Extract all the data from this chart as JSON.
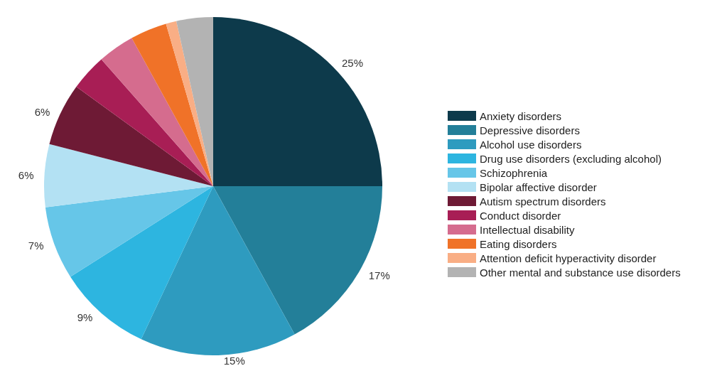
{
  "chart_data": {
    "type": "pie",
    "categories": [
      "Anxiety disorders",
      "Depressive disorders",
      "Alcohol use disorders",
      "Drug use disorders (excluding alcohol)",
      "Schizophrenia",
      "Bipolar affective disorder",
      "Autism spectrum disorders",
      "Conduct disorder",
      "Intellectual disability",
      "Eating disorders",
      "Attention deficit hyperactivity disorder",
      "Other mental and substance use disorders"
    ],
    "values": [
      25,
      17,
      15,
      9,
      7,
      6,
      6,
      3.5,
      3.5,
      3.5,
      1,
      3.5
    ],
    "value_labels": [
      "25%",
      "17%",
      "15%",
      "9%",
      "7%",
      "6%",
      "6%",
      null,
      null,
      null,
      null,
      null
    ],
    "colors": [
      "#0d3a4b",
      "#237f99",
      "#2e9bbf",
      "#2db5e0",
      "#66c6e8",
      "#b3e1f3",
      "#6e1a35",
      "#a81e55",
      "#d56c8e",
      "#f07228",
      "#f9ae85",
      "#b3b3b3"
    ],
    "legend": "right"
  }
}
